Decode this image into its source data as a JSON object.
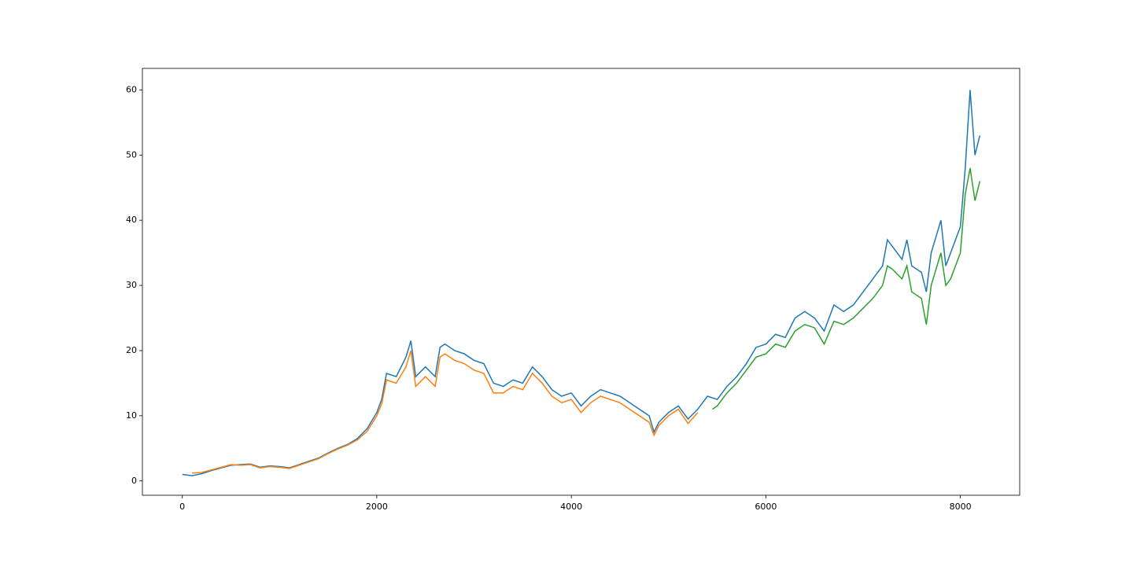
{
  "chart_data": {
    "type": "line",
    "xlim": [
      -410,
      8610
    ],
    "ylim": [
      -2.2,
      63.3
    ],
    "xticks": [
      0,
      2000,
      4000,
      6000,
      8000
    ],
    "yticks": [
      0,
      10,
      20,
      30,
      40,
      50,
      60
    ],
    "grid": false,
    "series": [
      {
        "color": "#1f77b4",
        "x": [
          0,
          100,
          200,
          300,
          400,
          500,
          600,
          700,
          800,
          900,
          1000,
          1100,
          1200,
          1300,
          1400,
          1500,
          1600,
          1700,
          1800,
          1900,
          2000,
          2050,
          2100,
          2200,
          2300,
          2350,
          2400,
          2500,
          2600,
          2650,
          2700,
          2800,
          2900,
          3000,
          3100,
          3200,
          3300,
          3400,
          3500,
          3600,
          3700,
          3800,
          3900,
          4000,
          4100,
          4200,
          4300,
          4400,
          4500,
          4600,
          4700,
          4800,
          4850,
          4900,
          5000,
          5100,
          5200,
          5300,
          5400,
          5500,
          5600,
          5700,
          5800,
          5900,
          6000,
          6100,
          6200,
          6300,
          6400,
          6500,
          6600,
          6700,
          6800,
          6900,
          7000,
          7100,
          7200,
          7250,
          7300,
          7400,
          7450,
          7500,
          7600,
          7650,
          7700,
          7800,
          7850,
          7900,
          8000,
          8050,
          8100,
          8150,
          8200
        ],
        "values": [
          1.0,
          0.8,
          1.1,
          1.6,
          2.0,
          2.4,
          2.5,
          2.6,
          2.1,
          2.3,
          2.2,
          2.0,
          2.5,
          3.0,
          3.5,
          4.3,
          5.0,
          5.6,
          6.5,
          8.0,
          10.5,
          12.5,
          16.5,
          16,
          19,
          21.5,
          16,
          17.5,
          16,
          20.5,
          21,
          20,
          19.5,
          18.5,
          18,
          15,
          14.5,
          15.5,
          15,
          17.5,
          16,
          14,
          13,
          13.5,
          11.5,
          13,
          14,
          13.5,
          13,
          12,
          11,
          10,
          7.5,
          9,
          10.5,
          11.5,
          9.5,
          11,
          13,
          12.5,
          14.5,
          16,
          18,
          20.5,
          21,
          22.5,
          22,
          25,
          26,
          25,
          23,
          27,
          26,
          27,
          29,
          31,
          33,
          37,
          36,
          34,
          37,
          33,
          32,
          29,
          35,
          40,
          33,
          35,
          39,
          48,
          60,
          50,
          53
        ]
      },
      {
        "color": "#ff7f0e",
        "x": [
          100,
          200,
          300,
          400,
          500,
          600,
          700,
          800,
          900,
          1000,
          1100,
          1200,
          1300,
          1400,
          1500,
          1600,
          1700,
          1800,
          1900,
          2000,
          2050,
          2100,
          2200,
          2300,
          2350,
          2400,
          2500,
          2600,
          2650,
          2700,
          2800,
          2900,
          3000,
          3100,
          3200,
          3300,
          3400,
          3500,
          3600,
          3700,
          3800,
          3900,
          4000,
          4100,
          4200,
          4300,
          4400,
          4500,
          4600,
          4700,
          4800,
          4850,
          4900,
          5000,
          5100,
          5200,
          5300
        ],
        "values": [
          1.2,
          1.3,
          1.7,
          2.1,
          2.5,
          2.4,
          2.5,
          2.0,
          2.2,
          2.1,
          1.9,
          2.4,
          2.9,
          3.4,
          4.2,
          4.9,
          5.5,
          6.3,
          7.6,
          10.0,
          11.8,
          15.5,
          15,
          17.5,
          20,
          14.5,
          16,
          14.5,
          19,
          19.5,
          18.5,
          18,
          17,
          16.5,
          13.5,
          13.5,
          14.5,
          14,
          16.5,
          15,
          13,
          12,
          12.5,
          10.5,
          12,
          13,
          12.5,
          12,
          11,
          10,
          9,
          7,
          8.5,
          10,
          11,
          8.8,
          10.5
        ]
      },
      {
        "color": "#2ca02c",
        "x": [
          5450,
          5500,
          5600,
          5700,
          5800,
          5900,
          6000,
          6100,
          6200,
          6300,
          6400,
          6500,
          6600,
          6700,
          6800,
          6900,
          7000,
          7100,
          7200,
          7250,
          7300,
          7400,
          7450,
          7500,
          7600,
          7650,
          7700,
          7800,
          7850,
          7900,
          8000,
          8050,
          8100,
          8150,
          8200
        ],
        "values": [
          11,
          11.5,
          13.5,
          15,
          17,
          19,
          19.5,
          21,
          20.5,
          23,
          24,
          23.5,
          21,
          24.5,
          24,
          25,
          26.5,
          28,
          30,
          33,
          32.5,
          31,
          33,
          29,
          28,
          24,
          30,
          35,
          30,
          31,
          35,
          44,
          48,
          43,
          46
        ]
      }
    ]
  }
}
